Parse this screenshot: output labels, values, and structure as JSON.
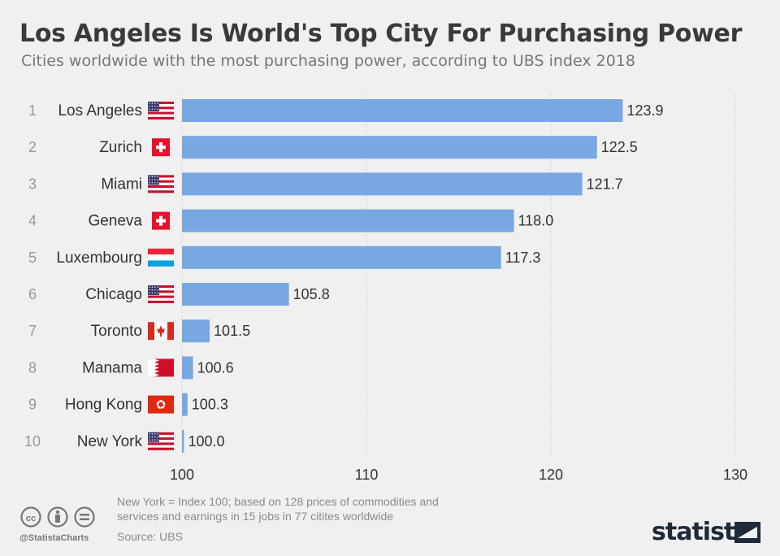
{
  "title": "Los Angeles Is World's Top City For Purchasing Power",
  "subtitle": "Cities worldwide with the most purchasing power, according to UBS index 2018",
  "chart_data": {
    "type": "bar",
    "orientation": "horizontal",
    "ranks": [
      "1",
      "2",
      "3",
      "4",
      "5",
      "6",
      "7",
      "8",
      "9",
      "10"
    ],
    "categories": [
      "Los Angeles",
      "Zurich",
      "Miami",
      "Geneva",
      "Luxembourg",
      "Chicago",
      "Toronto",
      "Manama",
      "Hong Kong",
      "New York"
    ],
    "values": [
      123.9,
      122.5,
      121.7,
      118.0,
      117.3,
      105.8,
      101.5,
      100.6,
      100.3,
      100.0
    ],
    "value_labels": [
      "123.9",
      "122.5",
      "121.7",
      "118.0",
      "117.3",
      "105.8",
      "101.5",
      "100.6",
      "100.3",
      "100.0"
    ],
    "flags": [
      "us-flag",
      "switzerland-flag",
      "us-flag",
      "switzerland-flag",
      "luxembourg-flag",
      "us-flag",
      "canada-flag",
      "bahrain-flag",
      "hong-kong-flag",
      "us-flag"
    ],
    "xlim": [
      100,
      130
    ],
    "xticks": [
      "100",
      "110",
      "120",
      "130"
    ],
    "grid": true,
    "bar_color": "#78a8e1"
  },
  "footnote": {
    "line1": "New York = Index 100; based on 128 prices of commodities and",
    "line2": "services and earnings in 15 jobs in 77 citites worldwide"
  },
  "source": "Source: UBS",
  "handle": "@StatistaCharts",
  "brand": "statista"
}
